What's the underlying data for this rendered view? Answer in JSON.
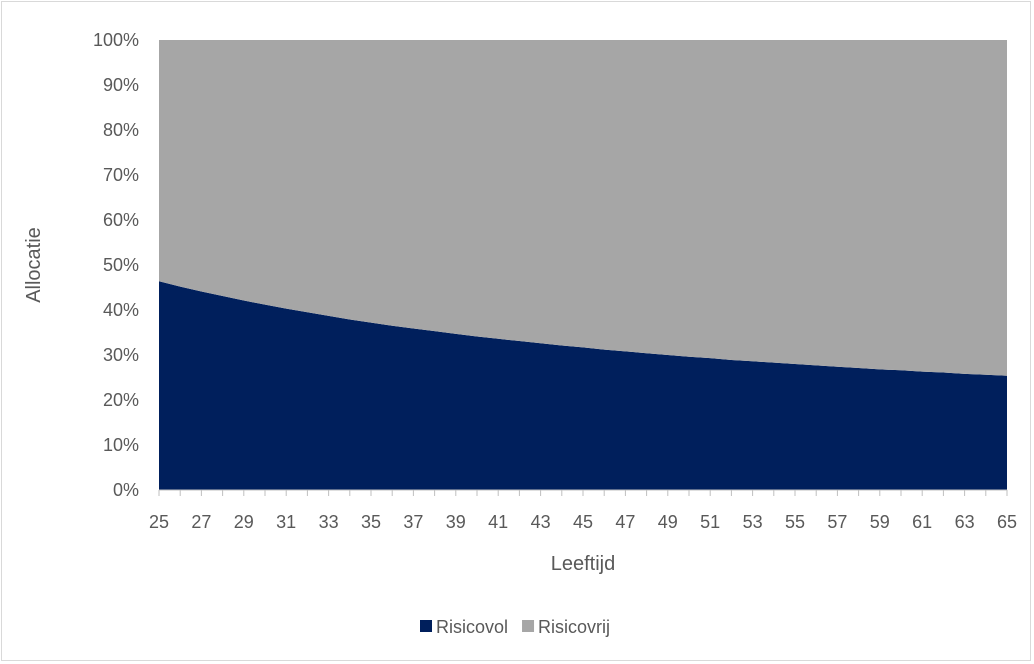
{
  "chart_data": {
    "type": "area",
    "stacked": true,
    "percent": true,
    "xlabel": "Leeftijd",
    "ylabel": "Allocatie",
    "x": [
      25,
      26,
      27,
      28,
      29,
      30,
      31,
      32,
      33,
      34,
      35,
      36,
      37,
      38,
      39,
      40,
      41,
      42,
      43,
      44,
      45,
      46,
      47,
      48,
      49,
      50,
      51,
      52,
      53,
      54,
      55,
      56,
      57,
      58,
      59,
      60,
      61,
      62,
      63,
      64,
      65
    ],
    "x_tick_labels": [
      "25",
      "27",
      "29",
      "31",
      "33",
      "35",
      "37",
      "39",
      "41",
      "43",
      "45",
      "47",
      "49",
      "51",
      "53",
      "55",
      "57",
      "59",
      "61",
      "63",
      "65"
    ],
    "y_tick_labels": [
      "0%",
      "10%",
      "20%",
      "30%",
      "40%",
      "50%",
      "60%",
      "70%",
      "80%",
      "90%",
      "100%"
    ],
    "ylim": [
      0,
      100
    ],
    "series": [
      {
        "name": "Risicovol",
        "color": "#001f5c",
        "values": [
          46.4,
          45.2,
          44.1,
          43.1,
          42.1,
          41.2,
          40.3,
          39.5,
          38.7,
          37.9,
          37.2,
          36.5,
          35.9,
          35.3,
          34.7,
          34.1,
          33.6,
          33.1,
          32.6,
          32.1,
          31.7,
          31.2,
          30.8,
          30.4,
          30.0,
          29.6,
          29.3,
          28.9,
          28.6,
          28.3,
          28.0,
          27.7,
          27.4,
          27.1,
          26.8,
          26.6,
          26.3,
          26.1,
          25.8,
          25.6,
          25.4
        ]
      },
      {
        "name": "Risicovrij",
        "color": "#a6a6a6",
        "values": [
          53.6,
          54.8,
          55.9,
          56.9,
          57.9,
          58.8,
          59.7,
          60.5,
          61.3,
          62.1,
          62.8,
          63.5,
          64.1,
          64.7,
          65.3,
          65.9,
          66.4,
          66.9,
          67.4,
          67.9,
          68.3,
          68.8,
          69.2,
          69.6,
          70.0,
          70.4,
          70.7,
          71.1,
          71.4,
          71.7,
          72.0,
          72.3,
          72.6,
          72.9,
          73.2,
          73.4,
          73.7,
          73.9,
          74.2,
          74.4,
          74.6
        ]
      }
    ],
    "legend_position": "bottom",
    "grid": false
  }
}
